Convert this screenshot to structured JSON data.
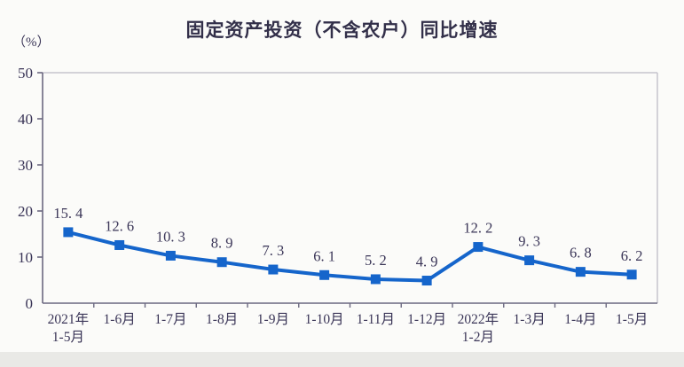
{
  "page": {
    "title": "固定资产投资（不含农户）同比增速",
    "unit_label": "（%）"
  },
  "chart_data": {
    "type": "line",
    "title": "固定资产投资（不含农户）同比增速",
    "xlabel": "",
    "ylabel": "（%）",
    "categories": [
      "2021年\n1-5月",
      "1-6月",
      "1-7月",
      "1-8月",
      "1-9月",
      "1-10月",
      "1-11月",
      "1-12月",
      "2022年\n1-2月",
      "1-3月",
      "1-4月",
      "1-5月"
    ],
    "values": [
      15.4,
      12.6,
      10.3,
      8.9,
      7.3,
      6.1,
      5.2,
      4.9,
      12.2,
      9.3,
      6.8,
      6.2
    ],
    "data_labels": [
      "15. 4",
      "12. 6",
      "10. 3",
      "8. 9",
      "7. 3",
      "6. 1",
      "5. 2",
      "4. 9",
      "12. 2",
      "9. 3",
      "6. 8",
      "6. 2"
    ],
    "ylim": [
      0,
      50
    ],
    "yticks": [
      0,
      10,
      20,
      30,
      40,
      50
    ],
    "grid": false,
    "legend": "none",
    "marker": "square",
    "colors": {
      "line": "#1565cb",
      "text": "#3a3557",
      "axis_dark": "#6b6880",
      "axis_light": "#c6c4ce"
    }
  }
}
